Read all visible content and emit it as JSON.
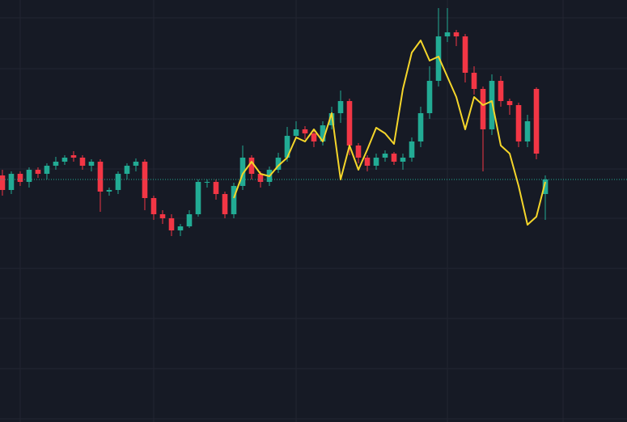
{
  "chart_data": {
    "type": "candlestick",
    "x": [
      0,
      1,
      2,
      3,
      4,
      5,
      6,
      7,
      8,
      9,
      10,
      11,
      12,
      13,
      14,
      15,
      16,
      17,
      18,
      19,
      20,
      21,
      22,
      23,
      24,
      25,
      26,
      27,
      28,
      29,
      30,
      31,
      32,
      33,
      34,
      35,
      36,
      37,
      38,
      39,
      40,
      41,
      42,
      43,
      44,
      45,
      46,
      47,
      48,
      49,
      50,
      51,
      52,
      53,
      54,
      55,
      56,
      57,
      58,
      59,
      60,
      61
    ],
    "open": [
      305,
      287,
      307,
      297,
      312,
      307,
      317,
      322,
      330,
      327,
      317,
      322,
      285,
      287,
      307,
      317,
      322,
      277,
      257,
      252,
      237,
      242,
      257,
      297,
      297,
      282,
      257,
      292,
      327,
      307,
      297,
      312,
      327,
      354,
      362,
      357,
      347,
      367,
      382,
      397,
      342,
      327,
      317,
      327,
      332,
      322,
      327,
      347,
      382,
      422,
      477,
      482,
      477,
      432,
      412,
      362,
      422,
      397,
      392,
      347,
      412,
      282
    ],
    "high": [
      312,
      310,
      310,
      315,
      315,
      320,
      328,
      330,
      335,
      330,
      325,
      325,
      290,
      310,
      320,
      326,
      325,
      280,
      262,
      257,
      245,
      262,
      300,
      300,
      300,
      285,
      296,
      342,
      330,
      310,
      316,
      333,
      365,
      372,
      366,
      360,
      372,
      390,
      410,
      400,
      345,
      330,
      332,
      336,
      334,
      332,
      352,
      390,
      440,
      512,
      512,
      485,
      480,
      440,
      415,
      430,
      428,
      400,
      395,
      380,
      414,
      305
    ],
    "low": [
      280,
      282,
      292,
      290,
      302,
      300,
      312,
      318,
      322,
      312,
      310,
      260,
      280,
      282,
      300,
      310,
      262,
      250,
      245,
      230,
      230,
      240,
      254,
      290,
      275,
      252,
      252,
      287,
      300,
      290,
      292,
      308,
      322,
      350,
      350,
      340,
      342,
      362,
      370,
      330,
      320,
      310,
      312,
      322,
      318,
      312,
      322,
      340,
      375,
      415,
      470,
      465,
      420,
      405,
      310,
      355,
      390,
      380,
      340,
      340,
      325,
      250
    ],
    "close": [
      287,
      307,
      297,
      312,
      307,
      317,
      322,
      327,
      327,
      317,
      322,
      285,
      287,
      307,
      317,
      322,
      277,
      257,
      252,
      237,
      242,
      257,
      297,
      297,
      282,
      257,
      292,
      327,
      307,
      297,
      312,
      327,
      354,
      362,
      357,
      347,
      367,
      382,
      397,
      342,
      327,
      317,
      327,
      332,
      322,
      327,
      347,
      382,
      422,
      477,
      482,
      477,
      432,
      412,
      362,
      422,
      397,
      392,
      347,
      372,
      332,
      300
    ],
    "up_color": "#22ab94",
    "down_color": "#f23645",
    "line": {
      "color": "#f5d62a",
      "values": [
        null,
        null,
        null,
        null,
        null,
        null,
        null,
        null,
        null,
        null,
        null,
        null,
        null,
        null,
        null,
        null,
        null,
        null,
        null,
        null,
        null,
        null,
        null,
        null,
        null,
        null,
        277,
        307,
        322,
        307,
        304,
        317,
        327,
        352,
        347,
        362,
        347,
        382,
        300,
        342,
        312,
        337,
        364,
        357,
        344,
        412,
        457,
        472,
        447,
        452,
        427,
        402,
        362,
        402,
        392,
        397,
        342,
        332,
        292,
        244,
        254,
        297
      ]
    },
    "last_price": 300,
    "xlim": [
      -0.27,
      70.18
    ],
    "ylim": [
      0,
      522
    ],
    "xticks": [
      2,
      17,
      33,
      50,
      63
    ],
    "yticks": [
      500,
      437,
      375,
      313,
      252,
      190,
      128,
      66,
      4
    ],
    "grid": true
  }
}
